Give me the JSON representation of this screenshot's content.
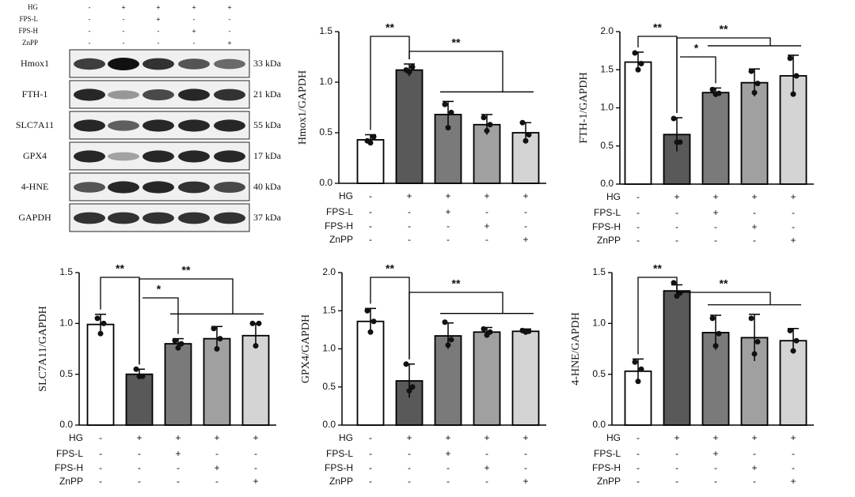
{
  "blot": {
    "conditions": [
      {
        "name": "HG",
        "signs": [
          "-",
          "+",
          "+",
          "+",
          "+"
        ]
      },
      {
        "name": "FPS-L",
        "signs": [
          "-",
          "-",
          "+",
          "-",
          "-"
        ]
      },
      {
        "name": "FPS-H",
        "signs": [
          "-",
          "-",
          "-",
          "+",
          "-"
        ]
      },
      {
        "name": "ZnPP",
        "signs": [
          "-",
          "-",
          "-",
          "-",
          "+"
        ]
      }
    ],
    "rows": [
      {
        "protein": "Hmox1",
        "size": "33 kDa"
      },
      {
        "protein": "FTH-1",
        "size": "21 kDa"
      },
      {
        "protein": "SLC7A11",
        "size": "55 kDa"
      },
      {
        "protein": "GPX4",
        "size": "17 kDa"
      },
      {
        "protein": "4-HNE",
        "size": "40 kDa"
      },
      {
        "protein": "GAPDH",
        "size": "37 kDa"
      }
    ]
  },
  "chart_data": [
    {
      "type": "bar",
      "y_label": "Hmox1/GAPDH",
      "ylim": [
        0,
        1.5
      ],
      "yticks": [
        {
          "value": 0,
          "label": "0.0"
        },
        0.5,
        {
          "value": 1,
          "label": "1.0"
        },
        1.5
      ],
      "values": [
        0.43,
        1.12,
        0.68,
        0.58,
        0.5
      ],
      "errors": [
        0.05,
        0.06,
        0.13,
        0.1,
        0.1
      ],
      "points": [
        [
          0.42,
          0.4,
          0.46
        ],
        [
          1.12,
          1.1,
          1.15
        ],
        [
          0.78,
          0.55,
          0.7
        ],
        [
          0.65,
          0.52,
          0.58
        ],
        [
          0.6,
          0.42,
          0.48
        ]
      ],
      "colors": [
        "#ffffff",
        "#595959",
        "#7a7a7a",
        "#a0a0a0",
        "#d4d4d4"
      ],
      "conditions": [
        {
          "name": "HG",
          "signs": [
            "-",
            "+",
            "+",
            "+",
            "+"
          ]
        },
        {
          "name": "FPS-L",
          "signs": [
            "-",
            "-",
            "+",
            "-",
            "-"
          ]
        },
        {
          "name": "FPS-H",
          "signs": [
            "-",
            "-",
            "-",
            "+",
            "-"
          ]
        },
        {
          "name": "ZnPP",
          "signs": [
            "-",
            "-",
            "-",
            "-",
            "+"
          ]
        }
      ],
      "annotations": [
        "**",
        "**"
      ]
    },
    {
      "type": "bar",
      "y_label": "FTH-1/GAPDH",
      "ylim": [
        0,
        2
      ],
      "yticks": [
        {
          "value": 0,
          "label": "0.0"
        },
        0.5,
        {
          "value": 1,
          "label": "1.0"
        },
        1.5,
        {
          "value": 2,
          "label": "2.0"
        }
      ],
      "values": [
        1.6,
        0.65,
        1.2,
        1.33,
        1.42
      ],
      "errors": [
        0.13,
        0.22,
        0.06,
        0.18,
        0.27
      ],
      "points": [
        [
          1.72,
          1.5,
          1.58
        ],
        [
          0.86,
          0.55,
          0.55
        ],
        [
          1.24,
          1.18,
          1.19
        ],
        [
          1.48,
          1.2,
          1.32
        ],
        [
          1.65,
          1.18,
          1.42
        ]
      ],
      "colors": [
        "#ffffff",
        "#595959",
        "#7a7a7a",
        "#a0a0a0",
        "#d4d4d4"
      ],
      "conditions": [
        {
          "name": "HG",
          "signs": [
            "-",
            "+",
            "+",
            "+",
            "+"
          ]
        },
        {
          "name": "FPS-L",
          "signs": [
            "-",
            "-",
            "+",
            "-",
            "-"
          ]
        },
        {
          "name": "FPS-H",
          "signs": [
            "-",
            "-",
            "-",
            "+",
            "-"
          ]
        },
        {
          "name": "ZnPP",
          "signs": [
            "-",
            "-",
            "-",
            "-",
            "+"
          ]
        }
      ],
      "annotations": [
        "**",
        "*",
        "**"
      ]
    },
    {
      "type": "bar",
      "y_label": "SLC7A11/GAPDH",
      "ylim": [
        0,
        1.5
      ],
      "yticks": [
        {
          "value": 0,
          "label": "0.0"
        },
        0.5,
        {
          "value": 1,
          "label": "1.0"
        },
        1.5
      ],
      "values": [
        0.99,
        0.5,
        0.8,
        0.85,
        0.88
      ],
      "errors": [
        0.1,
        0.05,
        0.05,
        0.12,
        0.12
      ],
      "points": [
        [
          1.05,
          0.9,
          1.0
        ],
        [
          0.55,
          0.48,
          0.48
        ],
        [
          0.83,
          0.76,
          0.8
        ],
        [
          0.95,
          0.75,
          0.85
        ],
        [
          1.0,
          0.78,
          1.0
        ]
      ],
      "colors": [
        "#ffffff",
        "#595959",
        "#7a7a7a",
        "#a0a0a0",
        "#d4d4d4"
      ],
      "conditions": [
        {
          "name": "HG",
          "signs": [
            "-",
            "+",
            "+",
            "+",
            "+"
          ]
        },
        {
          "name": "FPS-L",
          "signs": [
            "-",
            "-",
            "+",
            "-",
            "-"
          ]
        },
        {
          "name": "FPS-H",
          "signs": [
            "-",
            "-",
            "-",
            "+",
            "-"
          ]
        },
        {
          "name": "ZnPP",
          "signs": [
            "-",
            "-",
            "-",
            "-",
            "+"
          ]
        }
      ],
      "annotations": [
        "**",
        "*",
        "**"
      ]
    },
    {
      "type": "bar",
      "y_label": "GPX4/GAPDH",
      "ylim": [
        0,
        2
      ],
      "yticks": [
        {
          "value": 0,
          "label": "0.0"
        },
        0.5,
        {
          "value": 1,
          "label": "1.0"
        },
        1.5,
        {
          "value": 2,
          "label": "2.0"
        }
      ],
      "values": [
        1.36,
        0.58,
        1.17,
        1.22,
        1.23
      ],
      "errors": [
        0.17,
        0.22,
        0.17,
        0.06,
        0.03
      ],
      "points": [
        [
          1.5,
          1.22,
          1.36
        ],
        [
          0.8,
          0.45,
          0.5
        ],
        [
          1.35,
          1.05,
          1.12
        ],
        [
          1.26,
          1.18,
          1.22
        ],
        [
          1.24,
          1.22,
          1.23
        ]
      ],
      "colors": [
        "#ffffff",
        "#595959",
        "#7a7a7a",
        "#a0a0a0",
        "#d4d4d4"
      ],
      "conditions": [
        {
          "name": "HG",
          "signs": [
            "-",
            "+",
            "+",
            "+",
            "+"
          ]
        },
        {
          "name": "FPS-L",
          "signs": [
            "-",
            "-",
            "+",
            "-",
            "-"
          ]
        },
        {
          "name": "FPS-H",
          "signs": [
            "-",
            "-",
            "-",
            "+",
            "-"
          ]
        },
        {
          "name": "ZnPP",
          "signs": [
            "-",
            "-",
            "-",
            "-",
            "+"
          ]
        }
      ],
      "annotations": [
        "**",
        "**"
      ]
    },
    {
      "type": "bar",
      "y_label": "4-HNE/GAPDH",
      "ylim": [
        0,
        1.5
      ],
      "yticks": [
        {
          "value": 0,
          "label": "0.0"
        },
        0.5,
        {
          "value": 1,
          "label": "1.0"
        },
        1.5
      ],
      "values": [
        0.53,
        1.32,
        0.91,
        0.86,
        0.83
      ],
      "errors": [
        0.12,
        0.06,
        0.17,
        0.23,
        0.12
      ],
      "points": [
        [
          0.62,
          0.43,
          0.55
        ],
        [
          1.4,
          1.27,
          1.3
        ],
        [
          1.05,
          0.78,
          0.9
        ],
        [
          1.05,
          0.7,
          0.82
        ],
        [
          0.93,
          0.73,
          0.83
        ]
      ],
      "colors": [
        "#ffffff",
        "#595959",
        "#7a7a7a",
        "#a0a0a0",
        "#d4d4d4"
      ],
      "conditions": [
        {
          "name": "HG",
          "signs": [
            "-",
            "+",
            "+",
            "+",
            "+"
          ]
        },
        {
          "name": "FPS-L",
          "signs": [
            "-",
            "-",
            "+",
            "-",
            "-"
          ]
        },
        {
          "name": "FPS-H",
          "signs": [
            "-",
            "-",
            "-",
            "+",
            "-"
          ]
        },
        {
          "name": "ZnPP",
          "signs": [
            "-",
            "-",
            "-",
            "-",
            "+"
          ]
        }
      ],
      "annotations": [
        "**",
        "**"
      ]
    }
  ]
}
